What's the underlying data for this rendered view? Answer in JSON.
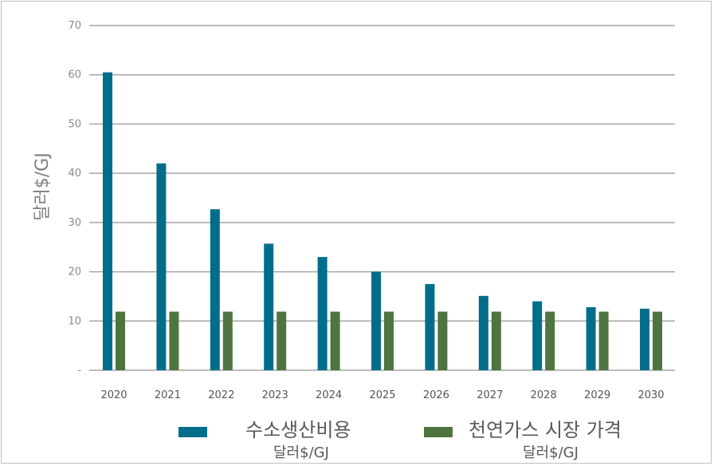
{
  "chart_data": {
    "type": "bar",
    "ylabel": "달러$/GJ",
    "ylim": [
      0,
      70
    ],
    "yticks": [
      {
        "value": 0,
        "label": "-"
      },
      {
        "value": 10,
        "label": "10"
      },
      {
        "value": 20,
        "label": "20"
      },
      {
        "value": 30,
        "label": "30"
      },
      {
        "value": 40,
        "label": "40"
      },
      {
        "value": 50,
        "label": "50"
      },
      {
        "value": 60,
        "label": "60"
      },
      {
        "value": 70,
        "label": "70"
      }
    ],
    "grid": true,
    "legend_position": "bottom",
    "categories": [
      "2020",
      "2021",
      "2022",
      "2023",
      "2024",
      "2025",
      "2026",
      "2027",
      "2028",
      "2029",
      "2030"
    ],
    "series": [
      {
        "name": "수소생산비용",
        "unit": "달러$/GJ",
        "color": "#006e8a",
        "values": [
          60.5,
          42,
          32.7,
          25.7,
          23,
          20,
          17.5,
          15.1,
          14,
          12.8,
          12.5
        ]
      },
      {
        "name": "천연가스 시장 가격",
        "unit": "달러$/GJ",
        "color": "#4e7440",
        "values": [
          11.9,
          11.9,
          11.9,
          11.9,
          11.9,
          11.9,
          11.9,
          11.9,
          11.9,
          11.9,
          11.9
        ]
      }
    ]
  }
}
